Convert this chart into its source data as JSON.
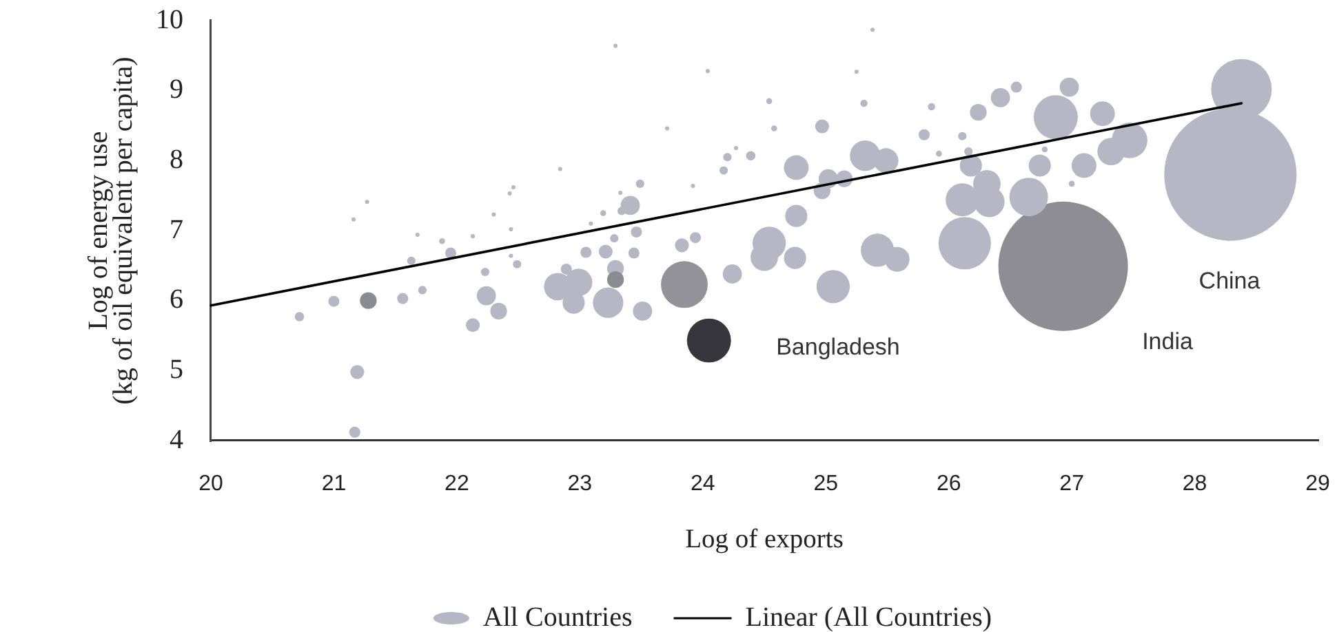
{
  "chart_data": {
    "type": "bubble",
    "xlabel": "Log of exports",
    "ylabel": "Log of energy use\n(kg of oil equivalent per capita)",
    "xlim": [
      20,
      29
    ],
    "ylim": [
      4,
      10
    ],
    "xticks": [
      20,
      21,
      22,
      23,
      24,
      25,
      26,
      27,
      28,
      29
    ],
    "yticks": [
      4,
      5,
      6,
      7,
      8,
      9,
      10
    ],
    "grid": false,
    "legend": "bottom",
    "annotations": [
      "Bangladesh",
      "India",
      "China"
    ],
    "series": [
      {
        "name": "All Countries",
        "color": "#b6b6c4",
        "x": [
          22.84,
          23.49,
          22.46,
          22.43,
          21.27,
          21.16,
          22.3,
          21.68,
          21.88,
          22.13,
          22.44,
          21.95,
          21.63,
          22.44,
          22.49,
          22.23,
          21.72,
          21.56,
          21.28,
          21.0,
          20.72,
          21.19,
          21.17,
          22.13,
          22.24,
          22.34,
          23.05,
          23.21,
          23.44,
          23.28,
          23.46,
          23.19,
          23.09,
          23.41,
          23.34,
          22.89,
          22.82,
          22.99,
          22.95,
          23.29,
          23.29,
          23.23,
          23.51,
          23.29,
          25.38,
          24.04,
          25.25,
          24.54,
          25.31,
          25.86,
          24.58,
          24.97,
          25.8,
          23.71,
          24.27,
          24.2,
          24.17,
          24.39,
          23.92,
          24.76,
          25.32,
          25.49,
          25.02,
          24.97,
          25.15,
          24.76,
          24.54,
          24.5,
          24.75,
          25.42,
          25.58,
          25.06,
          24.24,
          23.85,
          24.05,
          23.83,
          23.94,
          23.33,
          28.38,
          28.29,
          26.93,
          26.87,
          26.98,
          27.25,
          27.47,
          27.32,
          27.1,
          26.74,
          27.0,
          26.78,
          26.65,
          26.42,
          26.55,
          26.24,
          26.11,
          25.92,
          26.18,
          26.31,
          26.11,
          26.33,
          26.13,
          26.16
        ],
        "values": [
          7.88,
          7.67,
          7.62,
          7.53,
          7.41,
          7.16,
          7.23,
          6.94,
          6.85,
          6.92,
          7.02,
          6.68,
          6.57,
          6.64,
          6.52,
          6.41,
          6.15,
          6.03,
          6.0,
          5.99,
          5.77,
          4.98,
          4.12,
          5.65,
          6.07,
          5.85,
          6.69,
          6.7,
          6.68,
          6.89,
          6.98,
          7.25,
          7.1,
          7.36,
          7.28,
          6.45,
          6.2,
          6.26,
          5.97,
          6.46,
          6.3,
          5.97,
          5.85,
          9.64,
          9.87,
          9.28,
          9.27,
          8.85,
          8.82,
          8.77,
          8.46,
          8.49,
          8.37,
          8.46,
          8.18,
          8.05,
          7.86,
          8.07,
          7.64,
          7.9,
          8.07,
          8.0,
          7.74,
          7.57,
          7.74,
          7.21,
          6.82,
          6.62,
          6.61,
          6.72,
          6.59,
          6.2,
          6.38,
          6.23,
          5.43,
          6.79,
          6.9,
          7.54,
          9.02,
          7.8,
          6.49,
          8.62,
          9.05,
          8.67,
          8.29,
          8.13,
          7.93,
          7.93,
          7.67,
          8.16,
          7.48,
          8.9,
          9.05,
          8.69,
          8.35,
          8.1,
          7.93,
          7.67,
          7.44,
          7.41,
          6.82,
          8.13
        ],
        "sizes": [
          0.001,
          0.004,
          0.001,
          0.001,
          0.001,
          0.001,
          0.001,
          0.001,
          0.002,
          0.001,
          0.001,
          0.007,
          0.004,
          0.001,
          0.004,
          0.004,
          0.004,
          0.007,
          0.016,
          0.007,
          0.005,
          0.011,
          0.007,
          0.011,
          0.021,
          0.016,
          0.007,
          0.011,
          0.007,
          0.004,
          0.007,
          0.002,
          0.001,
          0.021,
          0.004,
          0.007,
          0.043,
          0.043,
          0.028,
          0.016,
          0.016,
          0.053,
          0.021,
          0.001,
          0.001,
          0.001,
          0.001,
          0.002,
          0.003,
          0.003,
          0.002,
          0.011,
          0.007,
          0.001,
          0.001,
          0.004,
          0.004,
          0.005,
          0.001,
          0.035,
          0.053,
          0.035,
          0.021,
          0.016,
          0.016,
          0.028,
          0.063,
          0.043,
          0.028,
          0.063,
          0.035,
          0.063,
          0.021,
          0.125,
          0.111,
          0.011,
          0.007,
          0.001,
          0.21,
          1,
          0.959,
          0.111,
          0.021,
          0.035,
          0.073,
          0.043,
          0.035,
          0.028,
          0.002,
          0.002,
          0.085,
          0.021,
          0.007,
          0.016,
          0.004,
          0.002,
          0.028,
          0.043,
          0.063,
          0.053,
          0.157,
          0.004
        ],
        "colors": [
          "#b6b6c4",
          "#b6b6c4",
          "#b6b6c4",
          "#b6b6c4",
          "#b6b6c4",
          "#b6b6c4",
          "#b6b6c4",
          "#b6b6c4",
          "#b6b6c4",
          "#b6b6c4",
          "#b6b6c4",
          "#b6b6c4",
          "#b6b6c4",
          "#b6b6c4",
          "#b6b6c4",
          "#b6b6c4",
          "#b6b6c4",
          "#b6b6c4",
          "#8b8b92",
          "#b6b6c4",
          "#b6b6c4",
          "#b6b6c4",
          "#b6b6c4",
          "#b6b6c4",
          "#b6b6c4",
          "#b6b6c4",
          "#b6b6c4",
          "#b6b6c4",
          "#b6b6c4",
          "#b6b6c4",
          "#b6b6c4",
          "#b6b6c4",
          "#b6b6c4",
          "#b6b6c4",
          "#b6b6c4",
          "#b6b6c4",
          "#b6b6c4",
          "#b6b6c4",
          "#b6b6c4",
          "#b6b6c4",
          "#8b8b92",
          "#b6b6c4",
          "#b6b6c4",
          "#b6b6c4",
          "#b6b6c4",
          "#b6b6c4",
          "#b6b6c4",
          "#b6b6c4",
          "#b6b6c4",
          "#b6b6c4",
          "#b6b6c4",
          "#b6b6c4",
          "#b6b6c4",
          "#b6b6c4",
          "#b6b6c4",
          "#b6b6c4",
          "#b6b6c4",
          "#b6b6c4",
          "#b6b6c4",
          "#b6b6c4",
          "#b6b6c4",
          "#b6b6c4",
          "#b6b6c4",
          "#b6b6c4",
          "#b6b6c4",
          "#b6b6c4",
          "#b6b6c4",
          "#b6b6c4",
          "#b6b6c4",
          "#b6b6c4",
          "#b6b6c4",
          "#b6b6c4",
          "#b6b6c4",
          "#929298",
          "#36363c",
          "#b6b6c4",
          "#b6b6c4",
          "#b6b6c4",
          "#b6b6c4",
          "#b6b6c4",
          "#8d8d93",
          "#b6b6c4",
          "#b6b6c4",
          "#b6b6c4",
          "#b6b6c4",
          "#b6b6c4",
          "#b6b6c4",
          "#b6b6c4",
          "#b6b6c4",
          "#b6b6c4",
          "#b6b6c4",
          "#b6b6c4",
          "#b6b6c4",
          "#b6b6c4",
          "#b6b6c4",
          "#b6b6c4",
          "#b6b6c4",
          "#b6b6c4",
          "#b6b6c4",
          "#b6b6c4",
          "#b6b6c4",
          "#b6b6c4"
        ]
      },
      {
        "name": "Linear (All Countries)",
        "type": "line",
        "color": "#000000",
        "x": [
          20,
          28.38
        ],
        "values": [
          5.93,
          8.82
        ]
      }
    ]
  }
}
